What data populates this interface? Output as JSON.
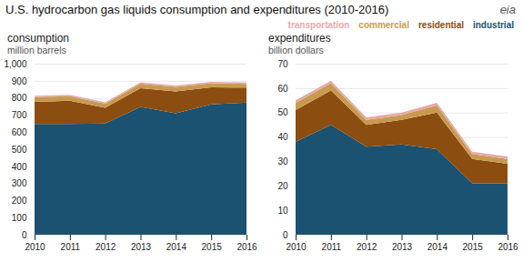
{
  "title": "U.S. hydrocarbon gas liquids consumption and expenditures (2010-2016)",
  "annotations": [
    "eia"
  ],
  "chart_data": [
    {
      "type": "area",
      "stacked": true,
      "title": "consumption",
      "ylabel": "million barrels",
      "x": [
        2010,
        2011,
        2012,
        2013,
        2014,
        2015,
        2016
      ],
      "xlim": [
        2010,
        2016
      ],
      "xticks": [
        2010,
        2011,
        2012,
        2013,
        2014,
        2015,
        2016
      ],
      "ylim": [
        0,
        1000
      ],
      "yticks": [
        0,
        100,
        200,
        300,
        400,
        500,
        600,
        700,
        800,
        900,
        {
          "value": 1000,
          "label": "1,000"
        }
      ],
      "grid": true,
      "series": [
        {
          "name": "industrial",
          "color": "#1b5272",
          "values": [
            648,
            648,
            650,
            748,
            710,
            762,
            772
          ]
        },
        {
          "name": "residential",
          "color": "#8b4d10",
          "values": [
            128,
            135,
            92,
            108,
            128,
            100,
            88
          ]
        },
        {
          "name": "commercial",
          "color": "#c89a50",
          "values": [
            28,
            27,
            24,
            27,
            27,
            24,
            22
          ]
        },
        {
          "name": "transportation",
          "color": "#e8a8a8",
          "values": [
            8,
            8,
            8,
            8,
            8,
            8,
            8
          ]
        }
      ]
    },
    {
      "type": "area",
      "stacked": true,
      "title": "expenditures",
      "ylabel": "billion dollars",
      "x": [
        2010,
        2011,
        2012,
        2013,
        2014,
        2015,
        2016
      ],
      "xlim": [
        2010,
        2016
      ],
      "xticks": [
        2010,
        2011,
        2012,
        2013,
        2014,
        2015,
        2016
      ],
      "ylim": [
        0,
        70
      ],
      "yticks": [
        0,
        10,
        20,
        30,
        40,
        50,
        60,
        70
      ],
      "grid": true,
      "legend": "upper right",
      "series": [
        {
          "name": "industrial",
          "color": "#1b5272",
          "values": [
            38,
            45,
            36,
            37,
            35,
            21,
            21
          ]
        },
        {
          "name": "residential",
          "color": "#8b4d10",
          "values": [
            13,
            14,
            9,
            10,
            15,
            10,
            8
          ]
        },
        {
          "name": "commercial",
          "color": "#c89a50",
          "values": [
            3,
            3,
            2,
            2,
            3,
            2,
            2
          ]
        },
        {
          "name": "transportation",
          "color": "#e8a8a8",
          "values": [
            1,
            1,
            1,
            1,
            1,
            1,
            1
          ]
        }
      ]
    }
  ]
}
